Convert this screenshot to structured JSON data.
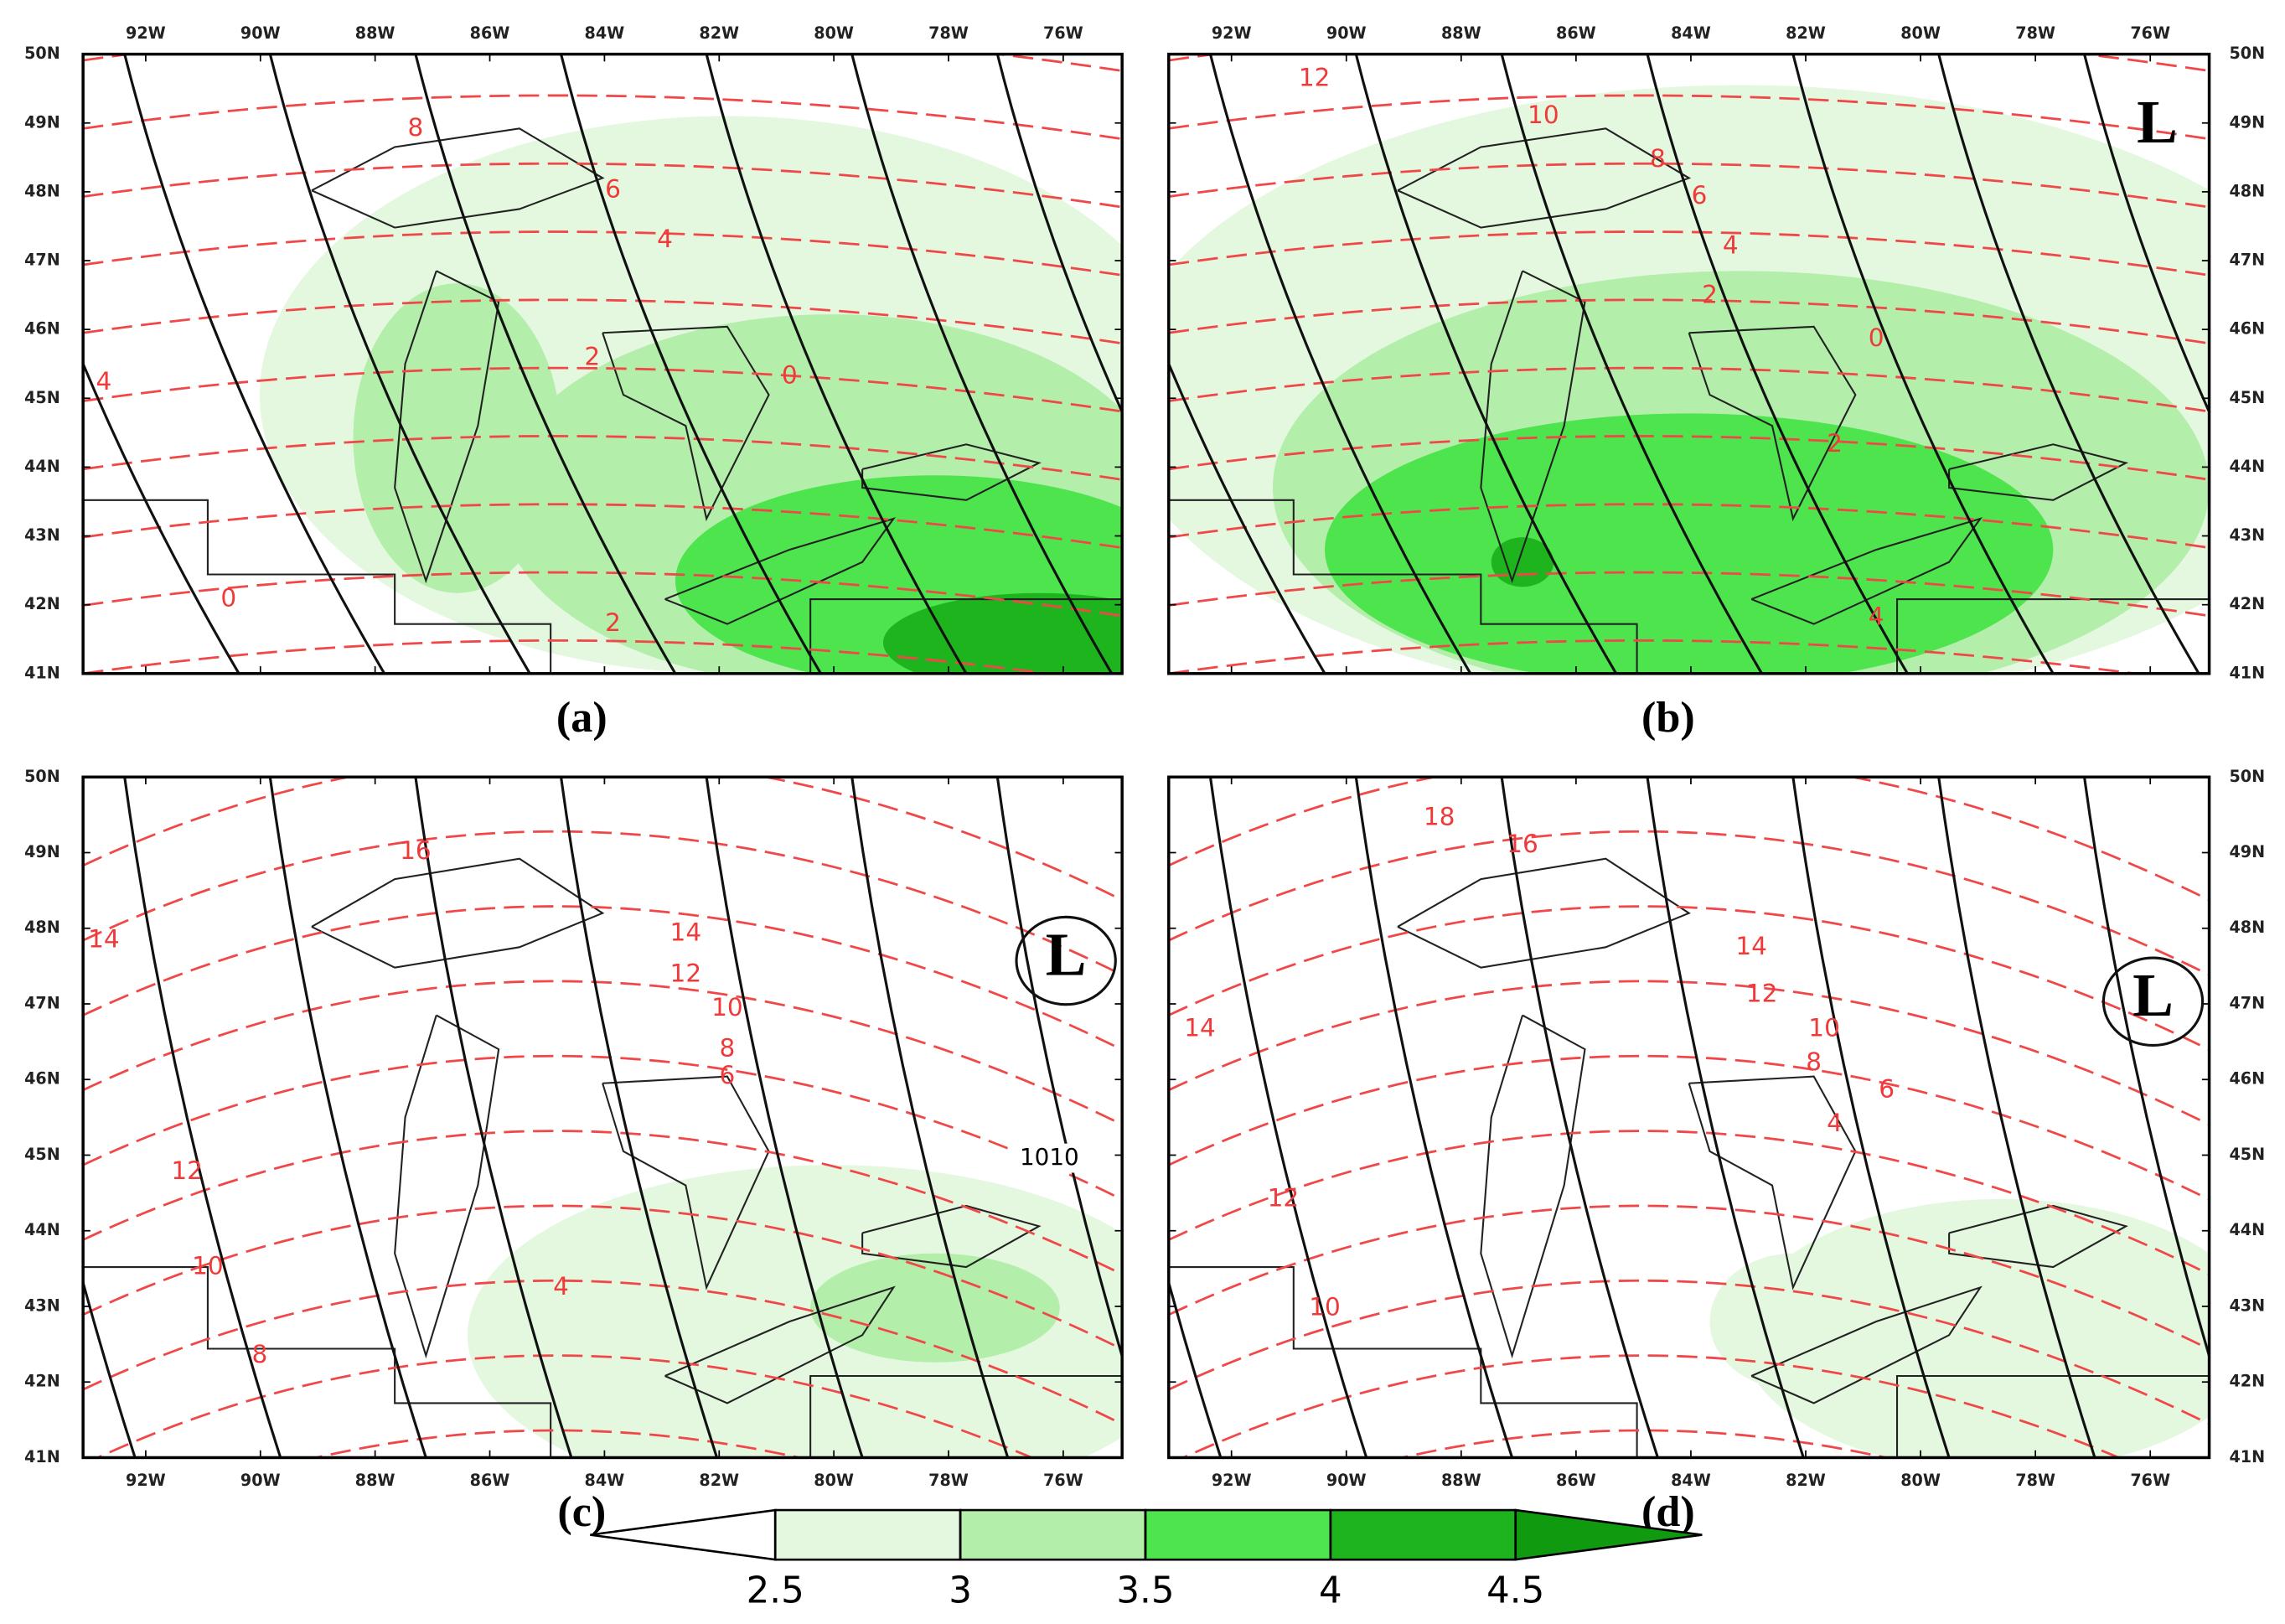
{
  "lon_ticks": [
    "92W",
    "90W",
    "88W",
    "86W",
    "84W",
    "82W",
    "80W",
    "78W",
    "76W"
  ],
  "lat_ticks": [
    "50N",
    "49N",
    "48N",
    "47N",
    "46N",
    "45N",
    "44N",
    "43N",
    "42N",
    "41N"
  ],
  "panels": [
    {
      "label": "(a)",
      "contour_labels": [
        "8",
        "6",
        "4",
        "4",
        "2",
        "0",
        "0",
        "2"
      ]
    },
    {
      "label": "(b)",
      "contour_labels": [
        "12",
        "10",
        "8",
        "6",
        "4",
        "2",
        "0",
        "2",
        "4"
      ],
      "low": "L"
    },
    {
      "label": "(c)",
      "contour_labels": [
        "16",
        "14",
        "14",
        "12",
        "10",
        "8",
        "6",
        "12",
        "10",
        "8",
        "4"
      ],
      "isobar_labels": [
        "1010"
      ],
      "low": "L"
    },
    {
      "label": "(d)",
      "contour_labels": [
        "18",
        "16",
        "14",
        "12",
        "10",
        "8",
        "6",
        "4",
        "14",
        "12",
        "10"
      ],
      "low": "L"
    }
  ],
  "colorbar": {
    "ticks": [
      2.5,
      3,
      3.5,
      4,
      4.5
    ],
    "colors": [
      "#ffffff",
      "#e4f8e0",
      "#b3eeaa",
      "#4ee44e",
      "#1eb41e",
      "#0f9a0f"
    ]
  }
}
